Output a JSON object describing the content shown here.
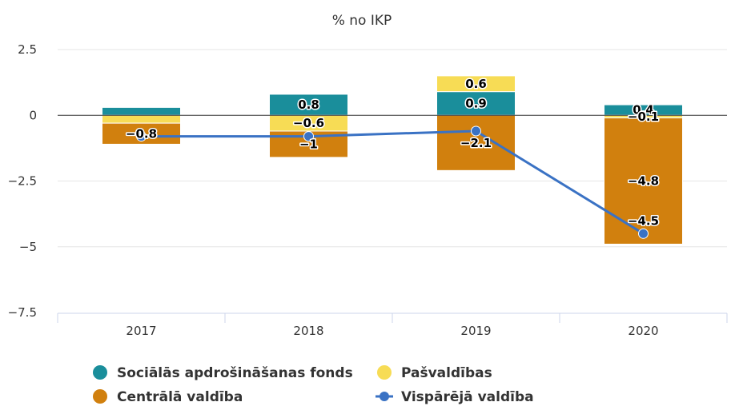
{
  "chart_data": {
    "type": "bar",
    "title": "% no IKP",
    "categories": [
      "2017",
      "2018",
      "2019",
      "2020"
    ],
    "ylim": [
      -7.5,
      2.5
    ],
    "yticks": [
      2.5,
      0,
      -2.5,
      -5,
      -7.5
    ],
    "ytick_labels": [
      "2.5",
      "0",
      "−2.5",
      "−5",
      "−7.5"
    ],
    "stacked": true,
    "grid": true,
    "legend_position": "bottom",
    "series": [
      {
        "name": "Sociālās apdrošināšanas fonds",
        "kind": "bar",
        "color": "#1a8e9b",
        "values": [
          0.3,
          0.8,
          0.9,
          0.4
        ],
        "labels": [
          "",
          "0.8",
          "0.9",
          "0.4"
        ]
      },
      {
        "name": "Pašvaldības",
        "kind": "bar",
        "color": "#f7dc55",
        "values": [
          -0.3,
          -0.6,
          0.6,
          -0.1
        ],
        "labels": [
          "",
          "−0.6",
          "0.6",
          "−0.1"
        ]
      },
      {
        "name": "Centrālā valdība",
        "kind": "bar",
        "color": "#d1800e",
        "values": [
          -0.8,
          -1.0,
          -2.1,
          -4.8
        ],
        "labels": [
          "−0.8",
          "−1",
          "−2.1",
          "−4.8"
        ]
      },
      {
        "name": "Vispārējā valdība",
        "kind": "line",
        "color": "#3a72c4",
        "values": [
          -0.8,
          -0.8,
          -0.6,
          -4.5
        ],
        "labels": [
          "",
          "",
          "",
          "−4.5"
        ]
      }
    ]
  }
}
